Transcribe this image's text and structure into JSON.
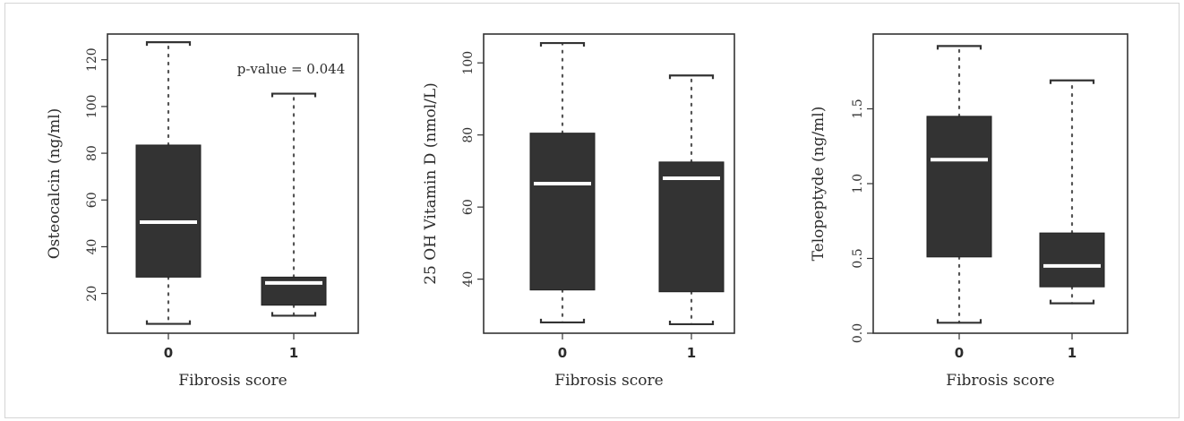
{
  "chart_data": [
    {
      "type": "boxplot",
      "xlabel": "Fibrosis score",
      "ylabel": "Osteocalcin (ng/ml)",
      "ylim": [
        3,
        131
      ],
      "yticks": [
        20,
        40,
        60,
        80,
        100,
        120
      ],
      "categories": [
        "0",
        "1"
      ],
      "boxes": [
        {
          "whisker_low": 7,
          "q1": 27,
          "median": 50.5,
          "q3": 83.5,
          "whisker_high": 127.5
        },
        {
          "whisker_low": 10.5,
          "q1": 15,
          "median": 24.5,
          "q3": 27,
          "whisker_high": 105.5
        }
      ],
      "annotation": "p-value = 0.044"
    },
    {
      "type": "boxplot",
      "xlabel": "Fibrosis score",
      "ylabel": "25 OH Vitamin D (nmol/L)",
      "ylim": [
        25,
        108
      ],
      "yticks": [
        40,
        60,
        80,
        100
      ],
      "categories": [
        "0",
        "1"
      ],
      "boxes": [
        {
          "whisker_low": 28,
          "q1": 37,
          "median": 66.5,
          "q3": 80.5,
          "whisker_high": 105.5
        },
        {
          "whisker_low": 27.5,
          "q1": 36.5,
          "median": 68,
          "q3": 72.5,
          "whisker_high": 96.5
        }
      ]
    },
    {
      "type": "boxplot",
      "xlabel": "Fibrosis score",
      "ylabel": "Telopeptyde (ng/ml)",
      "ylim": [
        0,
        2.0
      ],
      "yticks": [
        "0.0",
        "0.5",
        "1.0",
        "1.5"
      ],
      "categories": [
        "0",
        "1"
      ],
      "boxes": [
        {
          "whisker_low": 0.07,
          "q1": 0.51,
          "median": 1.16,
          "q3": 1.45,
          "whisker_high": 1.92
        },
        {
          "whisker_low": 0.2,
          "q1": 0.31,
          "median": 0.45,
          "q3": 0.67,
          "whisker_high": 1.69
        }
      ]
    }
  ]
}
